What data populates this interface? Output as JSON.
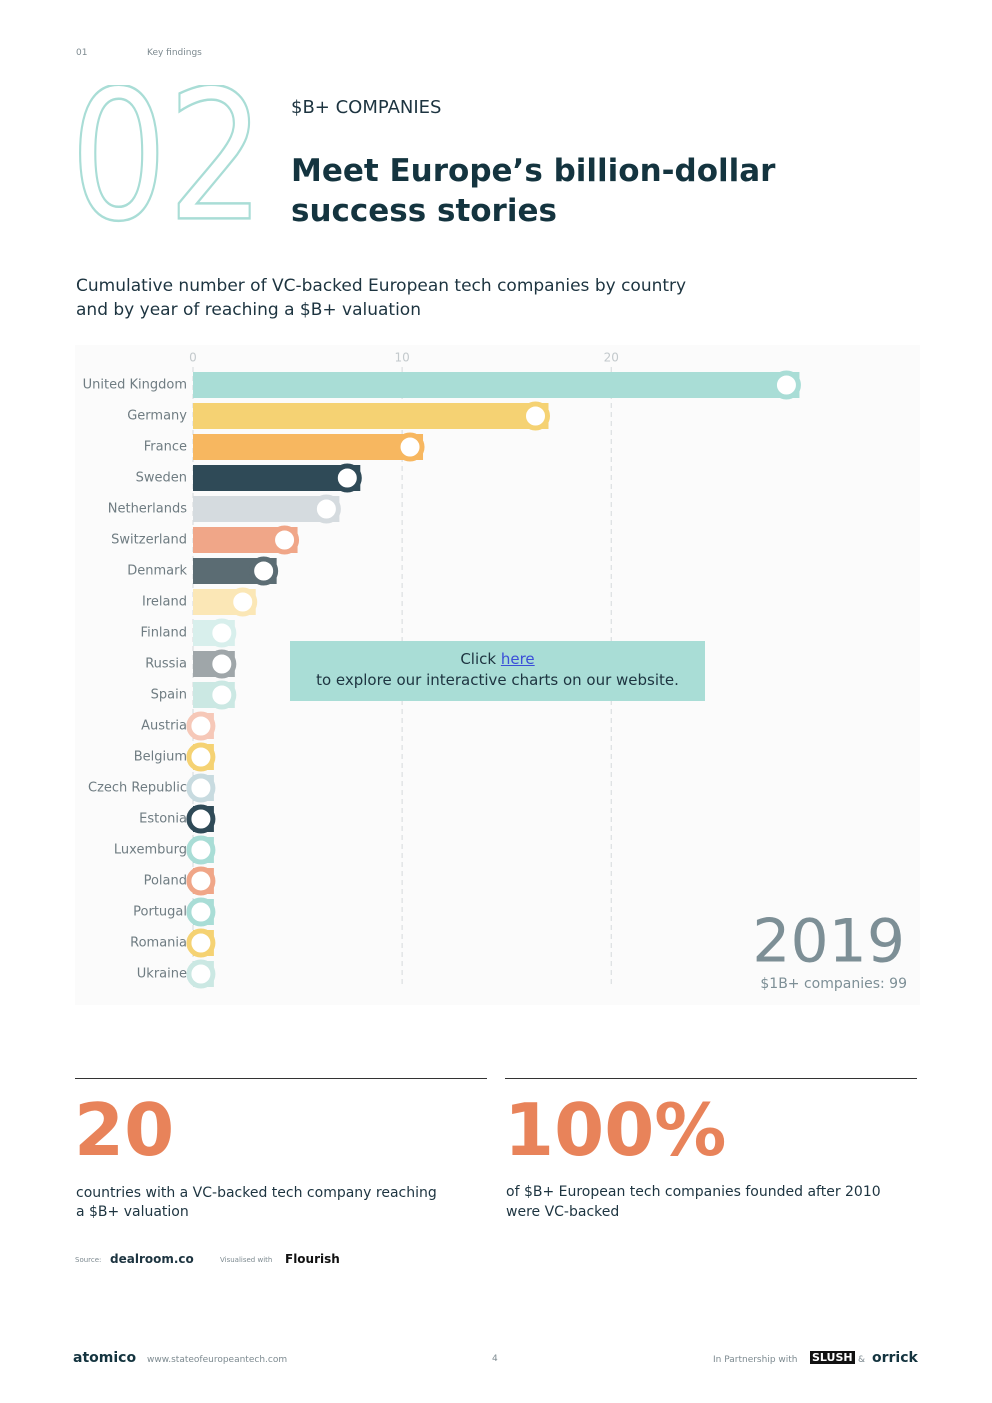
{
  "header": {
    "page_section": "01",
    "section_name": "Key findings"
  },
  "section": {
    "number": "02",
    "kicker": "$B+ COMPANIES",
    "title_line1": "Meet Europe’s billion-dollar",
    "title_line2": "success stories"
  },
  "chart_data": {
    "type": "bar",
    "orientation": "horizontal",
    "title_line1": "Cumulative number of VC-backed European tech companies by country",
    "title_line2": "and by year of reaching a $B+ valuation",
    "categories": [
      "United Kingdom",
      "Germany",
      "France",
      "Sweden",
      "Netherlands",
      "Switzerland",
      "Denmark",
      "Ireland",
      "Finland",
      "Russia",
      "Spain",
      "Austria",
      "Belgium",
      "Czech Republic",
      "Estonia",
      "Luxemburg",
      "Poland",
      "Portugal",
      "Romania",
      "Ukraine"
    ],
    "values": [
      29,
      17,
      11,
      8,
      7,
      5,
      4,
      3,
      2,
      2,
      2,
      1,
      1,
      1,
      1,
      1,
      1,
      1,
      1,
      1
    ],
    "colors": [
      "#a9ddd6",
      "#f5d273",
      "#f7b760",
      "#2f4a57",
      "#d5dbdf",
      "#f0a688",
      "#5b6c73",
      "#fbe7b6",
      "#d8efec",
      "#9fa6a9",
      "#cbe8e3",
      "#f6c8b8",
      "#f5d273",
      "#c8dbe0",
      "#2f4a57",
      "#a9ddd6",
      "#f0a688",
      "#a9ddd6",
      "#f5d273",
      "#cbe8e3"
    ],
    "xlim": [
      0,
      34
    ],
    "xticks": [
      0,
      10,
      20
    ],
    "grid": true,
    "year_label": "2019",
    "total_label": "$1B+ companies: 99",
    "callout": {
      "prefix": "Click",
      "link": "here",
      "text": "to explore our interactive charts on our website."
    }
  },
  "stats": [
    {
      "number": "20",
      "line1": "countries with a VC-backed tech company reaching",
      "line2": "a $B+ valuation"
    },
    {
      "number": "100%",
      "line1": "of $B+ European tech companies founded after 2010",
      "line2": "were VC-backed"
    }
  ],
  "sources": {
    "source_label": "Source:",
    "source": "dealroom.co",
    "visual_label": "Visualised with",
    "visual": "Flourish"
  },
  "footer": {
    "brand": "atomico",
    "url": "www.stateofeuropeantech.com",
    "page": "4",
    "partner_label": "In Partnership with",
    "partner1": "SLUSH",
    "amp": "&",
    "partner2": "orrick"
  }
}
